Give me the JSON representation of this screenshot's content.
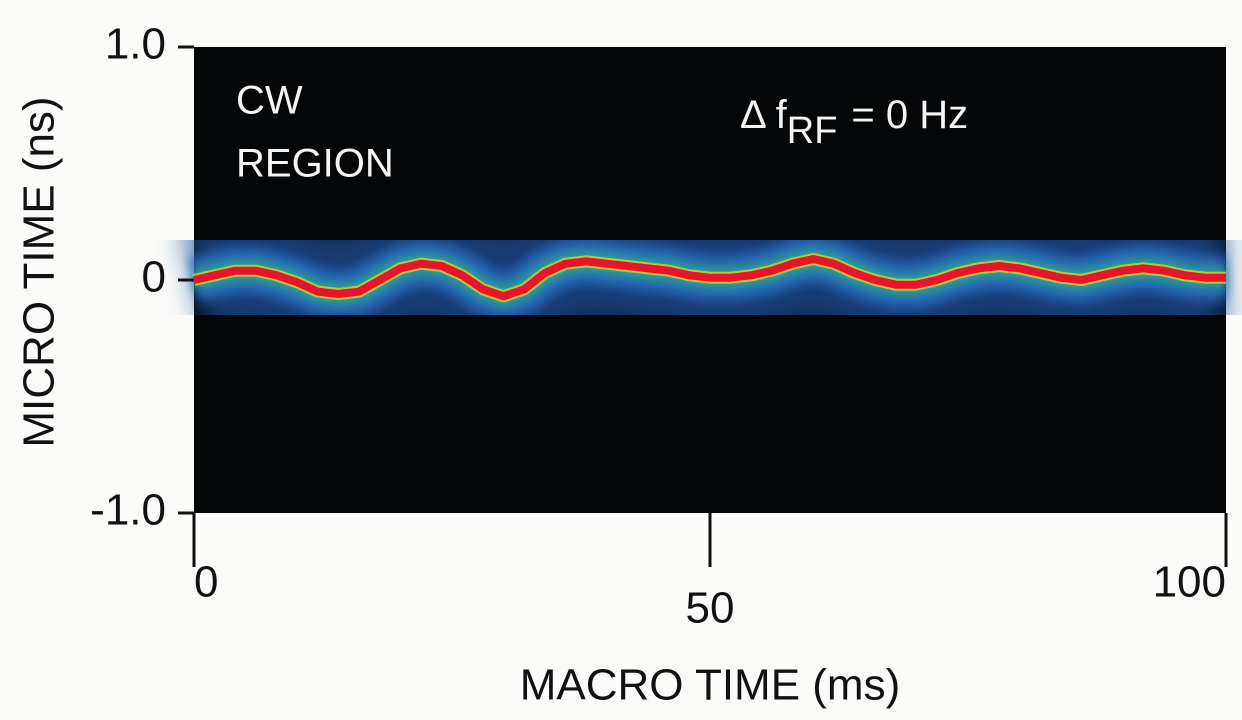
{
  "chart_data": {
    "type": "line",
    "x_label": "MACRO TIME (ms)",
    "y_label": "MICRO TIME (ns)",
    "annotations": {
      "region": [
        "CW",
        "REGION"
      ],
      "detuning": {
        "prefix": "Δ  f",
        "subscript": "RF",
        "suffix": "= 0 Hz"
      }
    },
    "xlim": [
      0,
      100
    ],
    "xticks": [
      0,
      50,
      100
    ],
    "ylim": [
      -1,
      1
    ],
    "yticks": [
      {
        "value": 1,
        "label": "1.0"
      },
      0,
      {
        "value": -1,
        "label": "-1.0"
      }
    ],
    "x": [
      0,
      2,
      4,
      6,
      8,
      10,
      12,
      14,
      16,
      18,
      20,
      22,
      24,
      26,
      28,
      30,
      32,
      34,
      36,
      38,
      40,
      42,
      44,
      46,
      48,
      50,
      52,
      54,
      56,
      58,
      60,
      62,
      64,
      66,
      68,
      70,
      72,
      74,
      76,
      78,
      80,
      82,
      84,
      86,
      88,
      90,
      92,
      94,
      96,
      98,
      100
    ],
    "series": [
      {
        "color": "#e8142a",
        "values": [
          0,
          0.02,
          0.04,
          0.04,
          0.02,
          -0.01,
          -0.05,
          -0.06,
          -0.05,
          0,
          0.05,
          0.07,
          0.06,
          0.02,
          -0.04,
          -0.07,
          -0.04,
          0.03,
          0.07,
          0.08,
          0.07,
          0.06,
          0.05,
          0.04,
          0.02,
          0.01,
          0.01,
          0.02,
          0.04,
          0.07,
          0.09,
          0.07,
          0.03,
          0,
          -0.02,
          -0.02,
          0,
          0.03,
          0.05,
          0.06,
          0.05,
          0.03,
          0.01,
          0,
          0.02,
          0.04,
          0.05,
          0.04,
          0.02,
          0.01,
          0.01
        ]
      }
    ]
  }
}
